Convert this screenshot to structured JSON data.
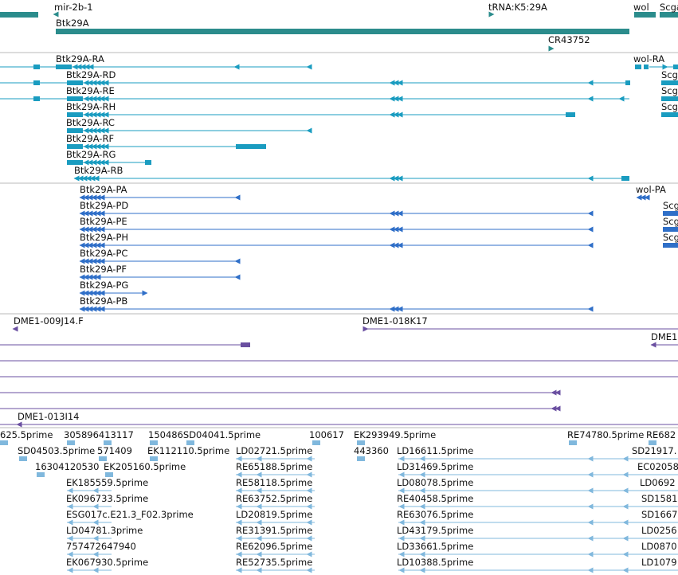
{
  "colors": {
    "gene": "#2b8c8c",
    "transcript": "#1a9cc0",
    "protein": "#2f6fc8",
    "clone": "#6a4fa0",
    "est": "#80b8dd",
    "divider": "#b8b8b8"
  },
  "tracks": {
    "genes": [
      "mir-2b-1",
      "tRNA:K5:29A",
      "wol",
      "Scga",
      "Btk29A",
      "CR43752"
    ],
    "transcripts": [
      "Btk29A-RA",
      "wol-RA",
      "Btk29A-RD",
      "Scga",
      "Btk29A-RE",
      "Scga",
      "Btk29A-RH",
      "Scga",
      "Btk29A-RC",
      "Btk29A-RF",
      "Btk29A-RG",
      "Btk29A-RB"
    ],
    "proteins": [
      "Btk29A-PA",
      "wol-PA",
      "Btk29A-PD",
      "Scga",
      "Btk29A-PE",
      "Scga",
      "Btk29A-PH",
      "Scga",
      "Btk29A-PC",
      "Btk29A-PF",
      "Btk29A-PG",
      "Btk29A-PB"
    ],
    "clones": [
      "DME1-009J14.F",
      "DME1-018K17",
      "DME1",
      "DME1-013I14"
    ],
    "ests": [
      "625.5prime",
      "305896413117",
      "150486SD04041.5prime",
      "100617",
      "EK293949.5prime",
      "RE74780.5prime",
      "RE682",
      "SD04503.5prime",
      "571409",
      "EK112110.5prime",
      "LD02721.5prime",
      "443360",
      "LD16611.5prime",
      "SD21917.",
      "16304120530",
      "EK205160.5prime",
      "RE65188.5prime",
      "LD31469.5prime",
      "EC02058",
      "EK185559.5prime",
      "RE58118.5prime",
      "LD08078.5prime",
      "LD0692",
      "EK096733.5prime",
      "RE63752.5prime",
      "RE40458.5prime",
      "SD1581",
      "ESG017c.E21.3_F02.3prime",
      "LD20819.5prime",
      "RE63076.5prime",
      "SD1667",
      "LD04781.3prime",
      "RE31391.5prime",
      "LD43179.5prime",
      "LD0256",
      "757472647940",
      "RE62096.5prime",
      "LD33661.5prime",
      "LD0870",
      "EK067930.5prime",
      "RE52735.5prime",
      "LD10388.5prime",
      "LD1079"
    ]
  }
}
